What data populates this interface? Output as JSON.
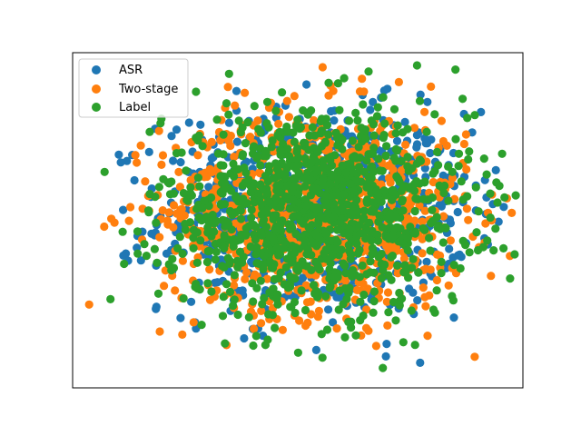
{
  "chart_data": {
    "type": "scatter",
    "title": "",
    "xlabel": "",
    "ylabel": "",
    "xlim": [
      -1.0,
      1.0
    ],
    "ylim": [
      -1.0,
      1.0
    ],
    "axes_ticks_visible": false,
    "grid": false,
    "legend_position": "top-left",
    "series": [
      {
        "name": "ASR",
        "color": "#1f77b4",
        "count": 900
      },
      {
        "name": "Two-stage",
        "color": "#ff7f0e",
        "count": 900
      },
      {
        "name": "Label",
        "color": "#2ca02c",
        "count": 1100
      }
    ]
  }
}
